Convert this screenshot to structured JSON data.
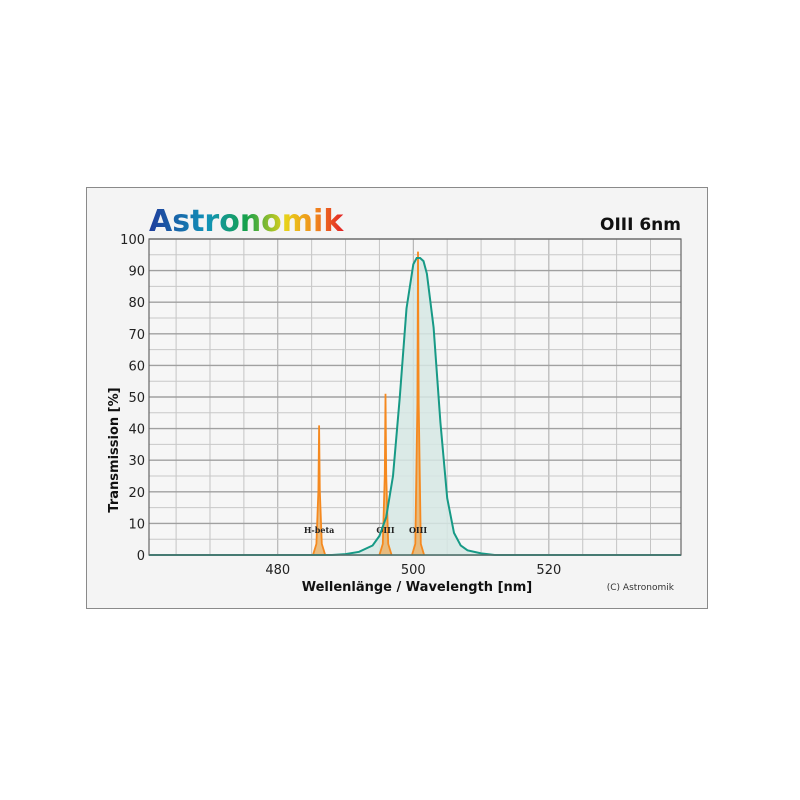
{
  "logo": {
    "text": "Astronomik"
  },
  "chart_data": {
    "type": "area",
    "title": "OIII 6nm",
    "xlabel": "Wellenlänge / Wavelength [nm]",
    "ylabel": "Transmission [%]",
    "xlim": [
      461,
      539.5
    ],
    "ylim": [
      0,
      100
    ],
    "xticks": [
      480,
      500,
      520
    ],
    "yticks": [
      0,
      10,
      20,
      30,
      40,
      50,
      60,
      70,
      80,
      90,
      100
    ],
    "x_grid_step": 5,
    "y_grid_step": 5,
    "grid": true,
    "copyright": "(C) Astronomik",
    "colors": {
      "filter": "#179a86",
      "filter_fill": "#d6e8e4",
      "lines": "#f5891f",
      "lines_fill": "#e9b36b"
    },
    "filter_curve": {
      "x": [
        461,
        488,
        490,
        492,
        494,
        495,
        496,
        497,
        498,
        499,
        500,
        500.5,
        501,
        501.5,
        502,
        503,
        504,
        505,
        506,
        507,
        508,
        510,
        512,
        539.5
      ],
      "y": [
        0,
        0,
        0.3,
        1,
        3,
        6,
        12,
        25,
        50,
        78,
        92,
        94,
        94,
        93,
        89,
        72,
        42,
        18,
        7,
        3,
        1.5,
        0.5,
        0,
        0
      ]
    },
    "emission_lines": [
      {
        "label": "H-beta",
        "wavelength": 486.1,
        "peak": 41
      },
      {
        "label": "OIII",
        "wavelength": 495.9,
        "peak": 51
      },
      {
        "label": "OIII",
        "wavelength": 500.7,
        "peak": 96
      }
    ]
  }
}
